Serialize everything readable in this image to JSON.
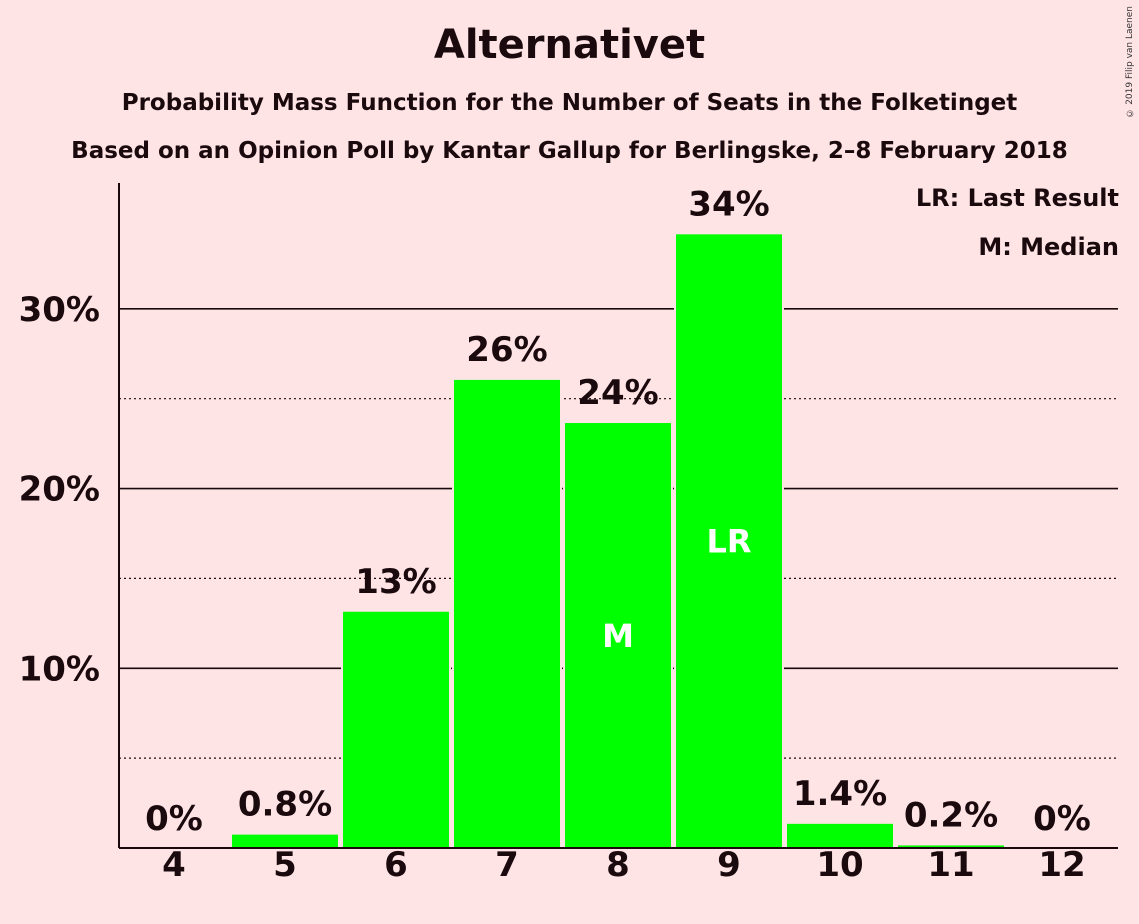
{
  "title": "Alternativet",
  "subtitle": "Probability Mass Function for the Number of Seats in the Folketinget",
  "subtitle2": "Based on an Opinion Poll by Kantar Gallup for Berlingske, 2–8 February 2018",
  "copyright": "© 2019 Filip van Laenen",
  "legend": {
    "last_result": "LR: Last Result",
    "median": "M: Median"
  },
  "colors": {
    "bar": "#00ff00",
    "background": "#ffe4e6",
    "text": "#1a0a0e"
  },
  "chart_data": {
    "type": "bar",
    "categories": [
      "4",
      "5",
      "6",
      "7",
      "8",
      "9",
      "10",
      "11",
      "12"
    ],
    "values": [
      0,
      0.8,
      13.2,
      26.1,
      23.7,
      34.2,
      1.4,
      0.2,
      0
    ],
    "labels": [
      "0%",
      "0.8%",
      "13%",
      "26%",
      "24%",
      "34%",
      "1.4%",
      "0.2%",
      "0%"
    ],
    "markers": {
      "8": "M",
      "9": "LR"
    },
    "ylim": [
      0,
      37
    ],
    "yticks": [
      10,
      20,
      30
    ],
    "ytick_labels": [
      "10%",
      "20%",
      "30%"
    ],
    "minor_gridlines": [
      5,
      15,
      25
    ],
    "grid": true,
    "legend_position": "top-right"
  }
}
